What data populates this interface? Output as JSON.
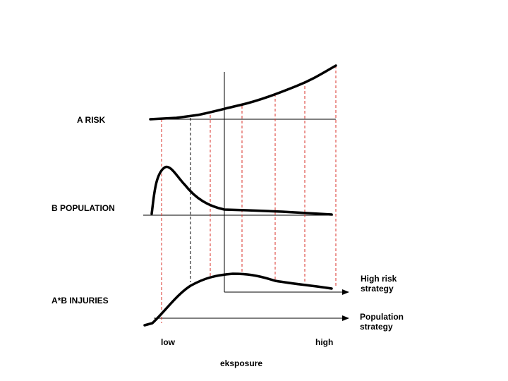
{
  "rows": {
    "risk": "A RISK",
    "population": "B POPULATION",
    "injuries": "A*B INJURIES"
  },
  "arrows": {
    "high_risk": [
      "High risk",
      "strategy"
    ],
    "population": [
      "Population",
      "strategy"
    ]
  },
  "axis": {
    "low": "low",
    "high": "high",
    "title": "eksposure"
  }
}
